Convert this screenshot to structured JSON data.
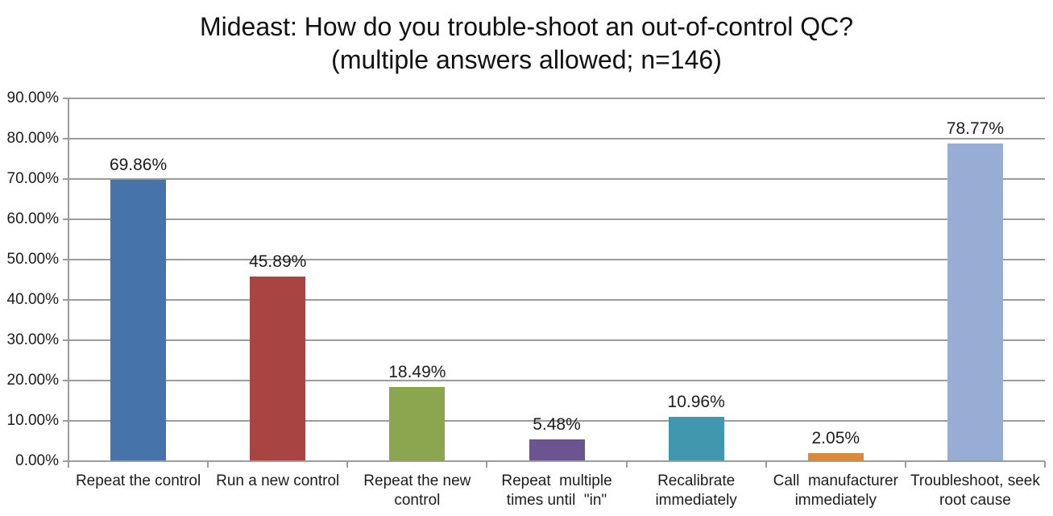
{
  "title": {
    "line1": "Mideast: How do you trouble-shoot an out-of-control QC?",
    "line2": "(multiple answers allowed; n=146)"
  },
  "chart_data": {
    "type": "bar",
    "title": "Mideast: How do you trouble-shoot an out-of-control QC? (multiple answers allowed; n=146)",
    "categories": [
      "Repeat the control",
      "Run a new control",
      "Repeat the new\ncontrol",
      "Repeat  multiple\ntimes until  \"in\"",
      "Recalibrate\nimmediately",
      "Call  manufacturer\nimmediately",
      "Troubleshoot, seek\nroot cause"
    ],
    "values": [
      69.86,
      45.89,
      18.49,
      5.48,
      10.96,
      2.05,
      78.77
    ],
    "value_labels": [
      "69.86%",
      "45.89%",
      "18.49%",
      "5.48%",
      "10.96%",
      "2.05%",
      "78.77%"
    ],
    "bar_colors": [
      "#4673aa",
      "#a84542",
      "#8ba64f",
      "#6b5490",
      "#4197ad",
      "#da8a3b",
      "#97add3"
    ],
    "ylim": [
      0,
      90
    ],
    "ytick_step": 10,
    "ytick_labels": [
      "0.00%",
      "10.00%",
      "20.00%",
      "30.00%",
      "40.00%",
      "50.00%",
      "60.00%",
      "70.00%",
      "80.00%",
      "90.00%"
    ],
    "grid": true,
    "legend": "none",
    "xlabel": "",
    "ylabel": ""
  },
  "style": {
    "gridline_color": "#9c9c9c",
    "axis_color": "#9c9c9c",
    "text_color": "#1c1c1c",
    "background": "#ffffff"
  }
}
